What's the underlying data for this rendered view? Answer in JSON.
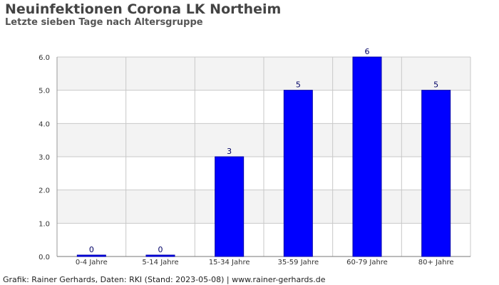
{
  "header": {
    "title": "Neuinfektionen Corona LK Northeim",
    "subtitle": "Letzte sieben Tage nach Altersgruppe"
  },
  "footer": {
    "credit": "Grafik: Rainer Gerhards, Daten: RKI (Stand: 2023-05-08) | www.rainer-gerhards.de"
  },
  "colors": {
    "bar_fill": "#0000ff",
    "bar_stroke": "#0000aa",
    "band_fill": "#f3f3f3",
    "grid": "#c8c8c8",
    "value_label": "#000066"
  },
  "chart_data": {
    "type": "bar",
    "title": "Neuinfektionen Corona LK Northeim",
    "subtitle": "Letzte sieben Tage nach Altersgruppe",
    "xlabel": "",
    "ylabel": "",
    "categories": [
      "0-4 Jahre",
      "5-14 Jahre",
      "15-34 Jahre",
      "35-59 Jahre",
      "60-79 Jahre",
      "80+ Jahre"
    ],
    "values": [
      0,
      0,
      3,
      5,
      6,
      5
    ],
    "value_labels": [
      "0",
      "0",
      "3",
      "5",
      "6",
      "5"
    ],
    "ylim": [
      0,
      6
    ],
    "yticks": [
      0,
      1,
      2,
      3,
      4,
      5,
      6
    ],
    "ytick_labels": [
      "0.0",
      "1.0",
      "2.0",
      "3.0",
      "4.0",
      "5.0",
      "6.0"
    ],
    "grid": true,
    "legend": "none"
  }
}
